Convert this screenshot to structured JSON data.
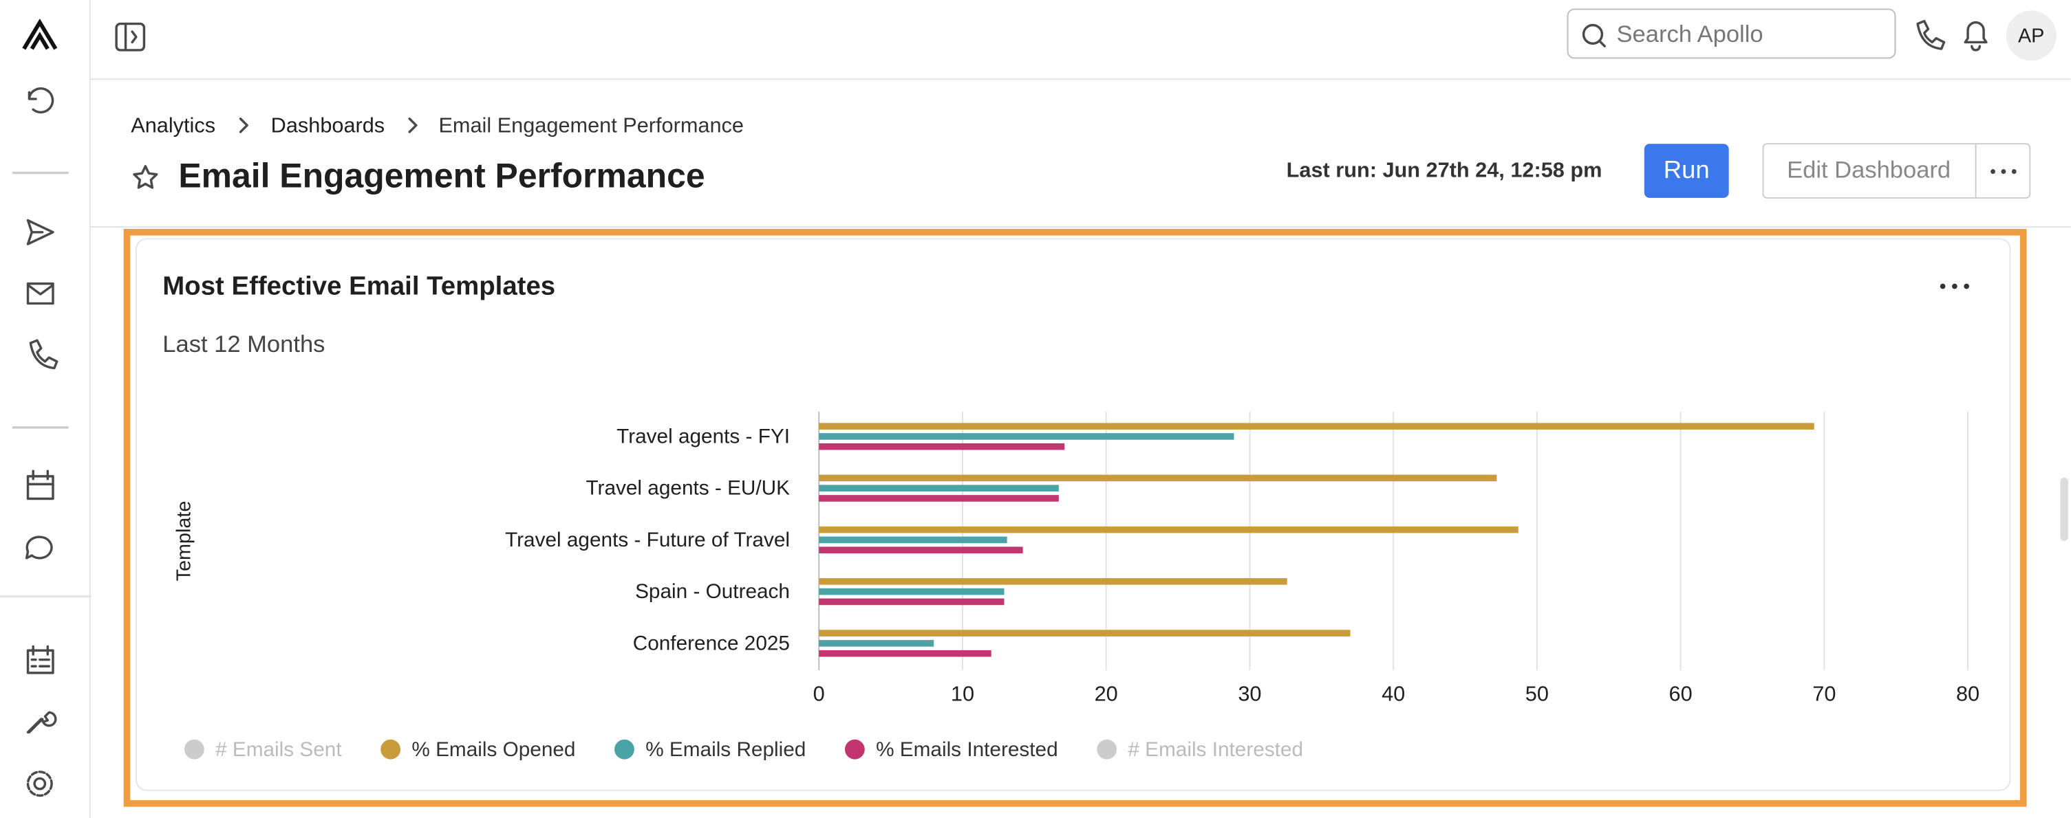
{
  "topbar": {
    "search_placeholder": "Search Apollo",
    "avatar": "AP"
  },
  "breadcrumb": [
    "Analytics",
    "Dashboards",
    "Email Engagement Performance"
  ],
  "header": {
    "title": "Email Engagement Performance",
    "last_run": "Last run: Jun 27th 24, 12:58 pm",
    "run_button": "Run",
    "edit_button": "Edit Dashboard"
  },
  "chart_data": {
    "type": "hbar",
    "title": "Most Effective Email Templates",
    "subtitle": "Last 12 Months",
    "y_label": "Template",
    "categories": [
      "Travel agents - FYI",
      "Travel agents - EU/UK",
      "Travel agents - Future of Travel",
      "Spain - Outreach",
      "Conference 2025"
    ],
    "series": [
      {
        "name": "# Emails Sent",
        "color": "#cccccc",
        "hidden": true,
        "values": [
          null,
          null,
          null,
          null,
          null
        ]
      },
      {
        "name": "% Emails Opened",
        "color": "#c99c3b",
        "values": [
          69.3,
          47.2,
          48.7,
          32.6,
          37.0
        ]
      },
      {
        "name": "% Emails Replied",
        "color": "#4aa3a6",
        "values": [
          28.9,
          16.7,
          13.1,
          12.9,
          8.0
        ]
      },
      {
        "name": "% Emails Interested",
        "color": "#c2356f",
        "values": [
          17.1,
          16.7,
          14.2,
          12.9,
          12.0
        ]
      },
      {
        "name": "# Emails Interested",
        "color": "#cccccc",
        "hidden": true,
        "values": [
          null,
          null,
          null,
          null,
          null
        ]
      }
    ],
    "xlim": [
      0,
      80
    ],
    "xticks": [
      0,
      10,
      20,
      30,
      40,
      50,
      60,
      70,
      80
    ],
    "grid": true
  }
}
